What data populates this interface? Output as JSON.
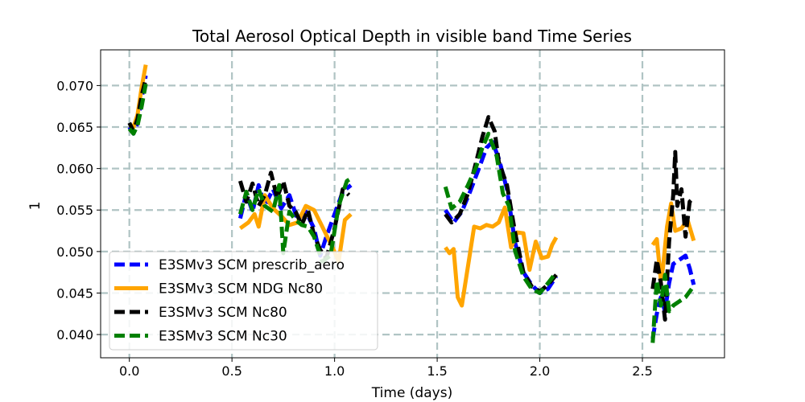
{
  "chart_data": {
    "type": "line",
    "title": "Total Aerosol Optical Depth in visible band Time Series",
    "xlabel": "Time (days)",
    "ylabel": "1",
    "xlim": [
      -0.14,
      2.9
    ],
    "ylim": [
      0.0372,
      0.0743
    ],
    "xticks": [
      0.0,
      0.5,
      1.0,
      1.5,
      2.0,
      2.5
    ],
    "xtick_labels": [
      "0.0",
      "0.5",
      "1.0",
      "1.5",
      "2.0",
      "2.5"
    ],
    "yticks": [
      0.04,
      0.045,
      0.05,
      0.055,
      0.06,
      0.065,
      0.07
    ],
    "ytick_labels": [
      "0.040",
      "0.045",
      "0.050",
      "0.055",
      "0.060",
      "0.065",
      "0.070"
    ],
    "grid": true,
    "legend_position": "lower-left",
    "series": [
      {
        "name": "E3SMv3 SCM prescrib_aero",
        "color": "#0000ff",
        "dash": "dashed",
        "segments": [
          [
            [
              0.0,
              0.065
            ],
            [
              0.02,
              0.0642
            ],
            [
              0.04,
              0.0655
            ],
            [
              0.06,
              0.0685
            ],
            [
              0.08,
              0.0712
            ]
          ],
          [
            [
              0.54,
              0.054
            ],
            [
              0.57,
              0.057
            ],
            [
              0.6,
              0.0548
            ],
            [
              0.63,
              0.058
            ],
            [
              0.66,
              0.0555
            ],
            [
              0.7,
              0.0575
            ],
            [
              0.74,
              0.0552
            ],
            [
              0.78,
              0.0568
            ],
            [
              0.82,
              0.0538
            ],
            [
              0.86,
              0.0548
            ],
            [
              0.9,
              0.0528
            ],
            [
              0.93,
              0.0495
            ],
            [
              0.96,
              0.0518
            ],
            [
              1.0,
              0.0545
            ],
            [
              1.04,
              0.0572
            ],
            [
              1.08,
              0.058
            ]
          ],
          [
            [
              1.54,
              0.055
            ],
            [
              1.58,
              0.0535
            ],
            [
              1.62,
              0.0548
            ],
            [
              1.66,
              0.0572
            ],
            [
              1.7,
              0.0598
            ],
            [
              1.74,
              0.0625
            ],
            [
              1.77,
              0.0632
            ],
            [
              1.8,
              0.0612
            ],
            [
              1.84,
              0.0575
            ],
            [
              1.88,
              0.051
            ],
            [
              1.92,
              0.0475
            ],
            [
              1.96,
              0.046
            ],
            [
              2.0,
              0.045
            ],
            [
              2.04,
              0.0455
            ],
            [
              2.08,
              0.047
            ]
          ],
          [
            [
              2.55,
              0.0395
            ],
            [
              2.57,
              0.0425
            ],
            [
              2.59,
              0.0445
            ],
            [
              2.61,
              0.0428
            ],
            [
              2.63,
              0.0462
            ],
            [
              2.65,
              0.0485
            ],
            [
              2.68,
              0.049
            ],
            [
              2.71,
              0.0495
            ],
            [
              2.73,
              0.048
            ],
            [
              2.75,
              0.046
            ]
          ]
        ]
      },
      {
        "name": "E3SMv3 SCM NDG Nc80",
        "color": "#ffa500",
        "dash": "solid",
        "segments": [
          [
            [
              0.0,
              0.0652
            ],
            [
              0.02,
              0.065
            ],
            [
              0.04,
              0.0665
            ],
            [
              0.06,
              0.0698
            ],
            [
              0.08,
              0.0725
            ]
          ],
          [
            [
              0.54,
              0.0528
            ],
            [
              0.58,
              0.0535
            ],
            [
              0.61,
              0.0545
            ],
            [
              0.63,
              0.053
            ],
            [
              0.66,
              0.0568
            ],
            [
              0.7,
              0.0552
            ],
            [
              0.74,
              0.0543
            ],
            [
              0.78,
              0.0532
            ],
            [
              0.82,
              0.0535
            ],
            [
              0.86,
              0.0555
            ],
            [
              0.9,
              0.055
            ],
            [
              0.93,
              0.0535
            ],
            [
              0.96,
              0.052
            ],
            [
              0.99,
              0.0505
            ],
            [
              1.02,
              0.0488
            ],
            [
              1.05,
              0.0538
            ],
            [
              1.08,
              0.0545
            ]
          ],
          [
            [
              1.54,
              0.0505
            ],
            [
              1.56,
              0.0498
            ],
            [
              1.58,
              0.0503
            ],
            [
              1.6,
              0.0445
            ],
            [
              1.62,
              0.0435
            ],
            [
              1.65,
              0.0482
            ],
            [
              1.68,
              0.053
            ],
            [
              1.71,
              0.0528
            ],
            [
              1.74,
              0.0532
            ],
            [
              1.77,
              0.053
            ],
            [
              1.8,
              0.0535
            ],
            [
              1.83,
              0.0553
            ],
            [
              1.86,
              0.0505
            ],
            [
              1.89,
              0.0523
            ],
            [
              1.92,
              0.0522
            ],
            [
              1.95,
              0.0478
            ],
            [
              1.98,
              0.0512
            ],
            [
              2.01,
              0.0492
            ],
            [
              2.04,
              0.0494
            ],
            [
              2.06,
              0.0508
            ],
            [
              2.08,
              0.0517
            ]
          ],
          [
            [
              2.55,
              0.0508
            ],
            [
              2.57,
              0.0515
            ],
            [
              2.59,
              0.0465
            ],
            [
              2.6,
              0.048
            ],
            [
              2.62,
              0.053
            ],
            [
              2.64,
              0.0558
            ],
            [
              2.66,
              0.0525
            ],
            [
              2.69,
              0.0528
            ],
            [
              2.72,
              0.0538
            ],
            [
              2.75,
              0.0513
            ]
          ]
        ]
      },
      {
        "name": "E3SMv3 SCM Nc80",
        "color": "#000000",
        "dash": "dashed",
        "segments": [
          [
            [
              0.0,
              0.0655
            ],
            [
              0.02,
              0.0645
            ],
            [
              0.04,
              0.066
            ],
            [
              0.06,
              0.0688
            ],
            [
              0.08,
              0.0708
            ]
          ],
          [
            [
              0.54,
              0.0585
            ],
            [
              0.57,
              0.056
            ],
            [
              0.6,
              0.0582
            ],
            [
              0.63,
              0.0555
            ],
            [
              0.66,
              0.0568
            ],
            [
              0.69,
              0.0595
            ],
            [
              0.72,
              0.0565
            ],
            [
              0.75,
              0.0585
            ],
            [
              0.78,
              0.0555
            ],
            [
              0.81,
              0.0548
            ],
            [
              0.84,
              0.0532
            ],
            [
              0.87,
              0.055
            ],
            [
              0.9,
              0.052
            ],
            [
              0.93,
              0.0502
            ],
            [
              0.96,
              0.0492
            ],
            [
              1.0,
              0.0528
            ],
            [
              1.04,
              0.0575
            ],
            [
              1.07,
              0.0568
            ]
          ],
          [
            [
              1.54,
              0.0545
            ],
            [
              1.57,
              0.0535
            ],
            [
              1.61,
              0.0545
            ],
            [
              1.65,
              0.057
            ],
            [
              1.69,
              0.0608
            ],
            [
              1.72,
              0.0638
            ],
            [
              1.75,
              0.0662
            ],
            [
              1.78,
              0.0645
            ],
            [
              1.8,
              0.0608
            ],
            [
              1.84,
              0.058
            ],
            [
              1.88,
              0.0522
            ],
            [
              1.92,
              0.0475
            ],
            [
              1.96,
              0.0458
            ],
            [
              2.0,
              0.0452
            ],
            [
              2.04,
              0.046
            ],
            [
              2.08,
              0.0472
            ]
          ],
          [
            [
              2.55,
              0.0455
            ],
            [
              2.57,
              0.049
            ],
            [
              2.59,
              0.0462
            ],
            [
              2.61,
              0.0418
            ],
            [
              2.63,
              0.0512
            ],
            [
              2.65,
              0.0568
            ],
            [
              2.66,
              0.062
            ],
            [
              2.67,
              0.0555
            ],
            [
              2.69,
              0.0575
            ],
            [
              2.71,
              0.0518
            ],
            [
              2.73,
              0.056
            ],
            [
              2.75,
              0.0565
            ]
          ]
        ]
      },
      {
        "name": "E3SMv3 SCM Nc30",
        "color": "#008000",
        "dash": "dashed",
        "segments": [
          [
            [
              0.0,
              0.0648
            ],
            [
              0.02,
              0.0642
            ],
            [
              0.04,
              0.0652
            ],
            [
              0.06,
              0.0675
            ],
            [
              0.08,
              0.0702
            ]
          ],
          [
            [
              0.54,
              0.0545
            ],
            [
              0.57,
              0.0572
            ],
            [
              0.6,
              0.055
            ],
            [
              0.63,
              0.0575
            ],
            [
              0.66,
              0.0555
            ],
            [
              0.7,
              0.0548
            ],
            [
              0.73,
              0.058
            ],
            [
              0.75,
              0.0498
            ],
            [
              0.78,
              0.0548
            ],
            [
              0.81,
              0.0538
            ],
            [
              0.84,
              0.0532
            ],
            [
              0.87,
              0.053
            ],
            [
              0.9,
              0.0518
            ],
            [
              0.94,
              0.0488
            ],
            [
              0.98,
              0.0495
            ],
            [
              1.02,
              0.0555
            ],
            [
              1.06,
              0.0585
            ],
            [
              1.08,
              0.0588
            ]
          ],
          [
            [
              1.54,
              0.0578
            ],
            [
              1.57,
              0.0552
            ],
            [
              1.61,
              0.056
            ],
            [
              1.65,
              0.058
            ],
            [
              1.69,
              0.0602
            ],
            [
              1.72,
              0.0625
            ],
            [
              1.75,
              0.0642
            ],
            [
              1.79,
              0.0615
            ],
            [
              1.82,
              0.057
            ],
            [
              1.85,
              0.0555
            ],
            [
              1.88,
              0.05
            ],
            [
              1.92,
              0.047
            ],
            [
              1.96,
              0.0455
            ],
            [
              2.0,
              0.045
            ],
            [
              2.04,
              0.0462
            ],
            [
              2.08,
              0.0475
            ]
          ],
          [
            [
              2.55,
              0.039
            ],
            [
              2.57,
              0.0465
            ],
            [
              2.59,
              0.0435
            ],
            [
              2.61,
              0.0472
            ],
            [
              2.63,
              0.0428
            ],
            [
              2.65,
              0.0435
            ],
            [
              2.68,
              0.044
            ],
            [
              2.71,
              0.0445
            ],
            [
              2.74,
              0.0455
            ]
          ]
        ]
      }
    ]
  }
}
